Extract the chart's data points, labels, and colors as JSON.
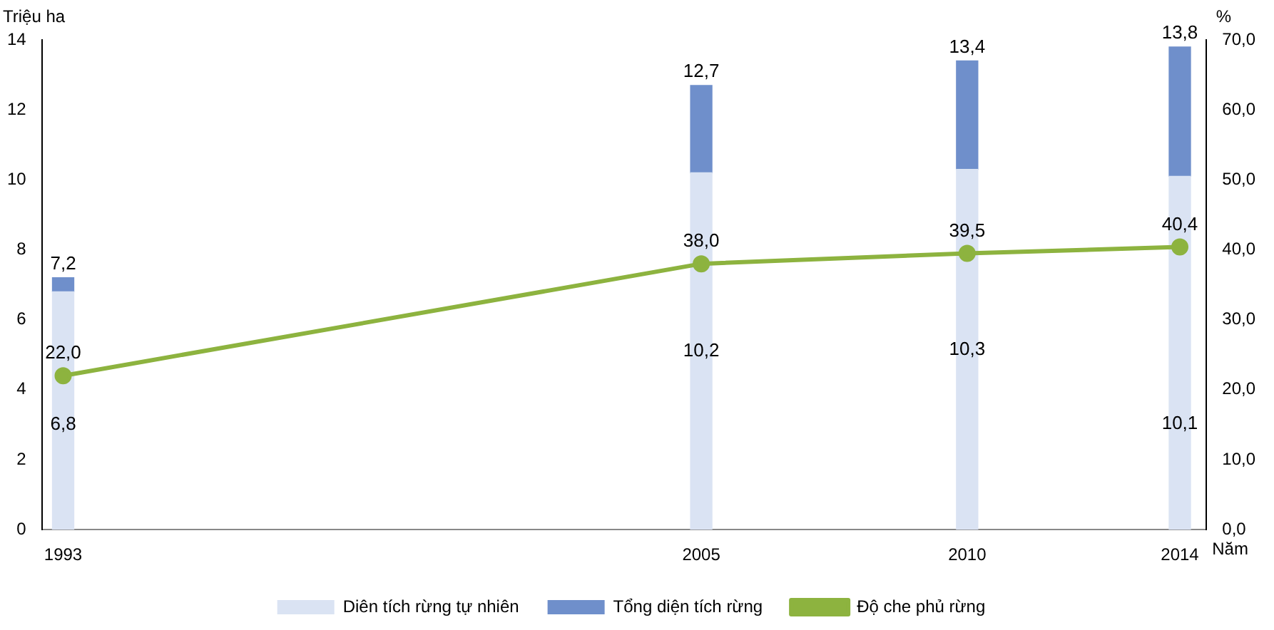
{
  "chart_data": {
    "type": "bar",
    "stacked": true,
    "xlabel": "Năm",
    "ylabel": "Triệu ha",
    "y2label": "%",
    "x": [
      1993,
      2005,
      2010,
      2014
    ],
    "xlim": [
      1992.6,
      2014.5
    ],
    "xticks": [
      1993,
      2005,
      2010,
      2014
    ],
    "ylim": [
      0,
      14
    ],
    "yticks": [
      0,
      2,
      4,
      6,
      8,
      10,
      12,
      14
    ],
    "y2lim": [
      0,
      70
    ],
    "y2ticks": [
      {
        "value": 0,
        "label": "0,0"
      },
      {
        "value": 10,
        "label": "10,0"
      },
      {
        "value": 20,
        "label": "20,0"
      },
      {
        "value": 30,
        "label": "30,0"
      },
      {
        "value": 40,
        "label": "40,0"
      },
      {
        "value": 50,
        "label": "50,0"
      },
      {
        "value": 60,
        "label": "60,0"
      },
      {
        "value": 70,
        "label": "70,0"
      }
    ],
    "series": [
      {
        "name": "Diên tích rừng tự nhiên",
        "color": "#dae3f3",
        "values": [
          6.8,
          10.2,
          10.3,
          10.1
        ],
        "value_labels": [
          "6,8",
          "10,2",
          "10,3",
          "10,1"
        ]
      },
      {
        "name": "Tổng diện tích rừng",
        "color": "#6f8fcb",
        "values": [
          0.4,
          2.5,
          3.1,
          3.7
        ]
      },
      {
        "name": "Độ che phủ rừng",
        "type": "line",
        "axis": "y2",
        "color": "#8db33f",
        "marker": "circle",
        "values": [
          22.0,
          38.0,
          39.5,
          40.4
        ],
        "value_labels": [
          "22,0",
          "38,0",
          "39,5",
          "40,4"
        ]
      }
    ],
    "totals": [
      "7,2",
      "12,7",
      "13,4",
      "13,8"
    ],
    "grid": false,
    "legend": "bottom"
  }
}
